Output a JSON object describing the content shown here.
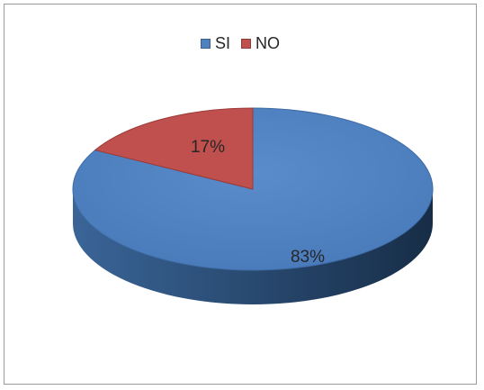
{
  "chart_data": {
    "type": "pie",
    "categories": [
      "SI",
      "NO"
    ],
    "values": [
      83,
      17
    ],
    "data_labels": [
      "83%",
      "17%"
    ],
    "colors": [
      "#4f81bd",
      "#c0504d"
    ],
    "legend_position": "top",
    "three_d": true
  }
}
